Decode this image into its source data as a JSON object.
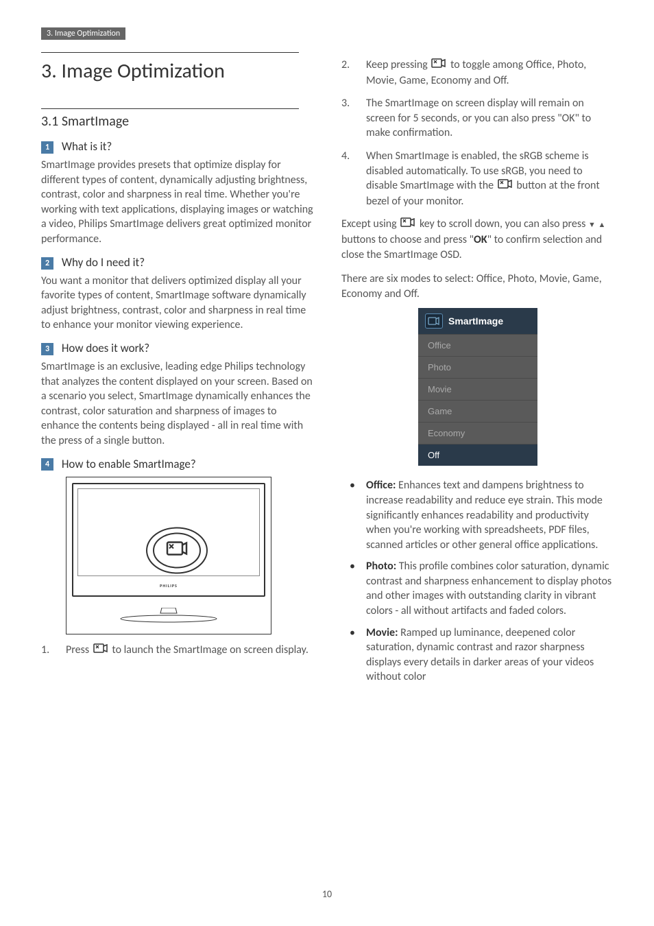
{
  "header": {
    "breadcrumb": "3. Image Optimization"
  },
  "title": "3.  Image Optimization",
  "section_title": "3.1 SmartImage",
  "left": {
    "q1": {
      "num": "1",
      "heading": "What is it?",
      "body": "SmartImage provides presets that optimize display for different types of content, dynamically adjusting brightness, contrast, color and sharpness in real time. Whether you're working with text applications, displaying images or watching a video, Philips SmartImage delivers great optimized monitor performance."
    },
    "q2": {
      "num": "2",
      "heading": "Why do I need it?",
      "body": "You want a monitor that delivers optimized display all your favorite types of content, SmartImage software dynamically adjust brightness, contrast, color and sharpness in real time to enhance your monitor viewing experience."
    },
    "q3": {
      "num": "3",
      "heading": "How does it work?",
      "body": "SmartImage is an exclusive, leading edge Philips technology that analyzes the content displayed on your screen. Based on a scenario you select, SmartImage dynamically enhances the contrast, color saturation and sharpness of images to enhance the contents being displayed - all in real time with the press of a single button."
    },
    "q4": {
      "num": "4",
      "heading": "How to enable SmartImage?"
    },
    "step1": {
      "num": "1.",
      "text_a": "Press ",
      "text_b": " to launch the SmartImage on screen display."
    },
    "monitor_logo": "PHILIPS"
  },
  "right": {
    "step2": {
      "num": "2.",
      "text_a": "Keep pressing ",
      "text_b": " to toggle among Office, Photo, Movie, Game, Economy and Off."
    },
    "step3": {
      "num": "3.",
      "text": "The SmartImage on screen display will remain on screen for 5 seconds, or you can also press \"OK\" to make confirmation."
    },
    "step4": {
      "num": "4.",
      "text_a": "When SmartImage is enabled, the sRGB scheme is disabled automatically. To use sRGB, you need to disable SmartImage with the ",
      "text_b": " button at the front bezel of your monitor."
    },
    "except": {
      "text_a": "Except using ",
      "text_b": " key to scroll down, you can also press ",
      "text_c": " buttons to choose and press \"",
      "ok": "OK",
      "text_d": "\" to confirm selection and close the SmartImage OSD."
    },
    "six_modes": "There are six modes to select: Office, Photo, Movie, Game, Economy and Off.",
    "osd": {
      "title": "SmartImage",
      "items": [
        "Office",
        "Photo",
        "Movie",
        "Game",
        "Economy",
        "Off"
      ],
      "selected_index": 5,
      "colors": {
        "header_bg": "#2a3a4a",
        "item_bg": "#5a5a5a",
        "item_fg": "#aaaaaa",
        "selected_bg": "#2a3a4a",
        "selected_fg": "#ffffff"
      }
    },
    "bullets": {
      "office": {
        "label": "Office:",
        "text": " Enhances text and dampens brightness to increase readability and reduce eye strain. This mode significantly enhances readability and productivity when you're working with spreadsheets, PDF files, scanned articles or other general office applications."
      },
      "photo": {
        "label": "Photo:",
        "text": " This profile combines color saturation, dynamic contrast and sharpness enhancement to display photos and other images with outstanding clarity in vibrant colors - all without artifacts and faded colors."
      },
      "movie": {
        "label": "Movie:",
        "text": " Ramped up luminance, deepened color saturation, dynamic contrast and razor sharpness displays every details in darker areas of your videos without color"
      }
    }
  },
  "page_number": "10",
  "colors": {
    "numbox_bg": "#4a7ba6",
    "header_bg": "#666666",
    "text": "#555555",
    "heading": "#333333"
  }
}
